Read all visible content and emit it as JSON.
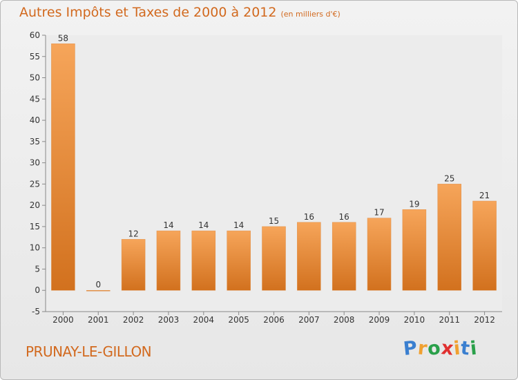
{
  "title": "Autres Impôts et Taxes de 2000 à 2012",
  "subtitle": "(en milliers d'€)",
  "commune": "PRUNAY-LE-GILLON",
  "logo": {
    "letters": [
      "P",
      "r",
      "o",
      "x",
      "i",
      "t",
      "i"
    ],
    "colors": [
      "#3a7fd0",
      "#f0a030",
      "#2aa04a",
      "#e03030",
      "#f0a030",
      "#3a7fd0",
      "#2aa04a"
    ]
  },
  "colors": {
    "bar_light": "#f6a55a",
    "bar_dark": "#d2711e",
    "accent": "#d2691e"
  },
  "chart_data": {
    "type": "bar",
    "title": "Autres Impôts et Taxes de 2000 à 2012",
    "subtitle": "(en milliers d'€)",
    "categories": [
      "2000",
      "2001",
      "2002",
      "2003",
      "2004",
      "2005",
      "2006",
      "2007",
      "2008",
      "2009",
      "2010",
      "2011",
      "2012"
    ],
    "values": [
      58,
      0,
      12,
      14,
      14,
      14,
      15,
      16,
      16,
      17,
      19,
      25,
      21
    ],
    "value_labels": [
      "58",
      "0",
      "12",
      "14",
      "14",
      "14",
      "15",
      "16",
      "16",
      "17",
      "19",
      "25",
      "21"
    ],
    "ylim": [
      -5,
      60
    ],
    "yticks": [
      "-5",
      "0",
      "5",
      "10",
      "15",
      "20",
      "25",
      "30",
      "35",
      "40",
      "45",
      "50",
      "55",
      "60"
    ],
    "grid": false
  }
}
